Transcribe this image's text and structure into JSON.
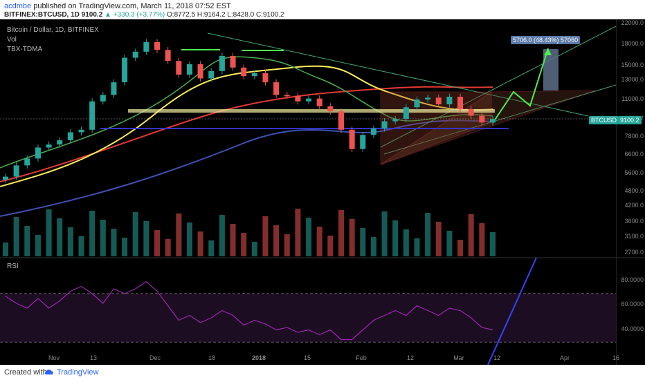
{
  "header": {
    "author": "acdmbe",
    "published": "published on TradingView.com, March 11, 2018 07:52 EST",
    "symbol_line": "BITFINEX:BTCUSD, 1D  9100.2",
    "change": "+330.3 (+3.77%)",
    "ohlc": "O:8772.5 H:9164.2 L:8428.0 C:9100.2"
  },
  "legend": {
    "line1": "Bitcoin / Dollar, 1D, BITFINEX",
    "line2": "Vol",
    "line3": "TBX-TDMA",
    "rsi": "RSI"
  },
  "badges": {
    "projection": "5706.0 (48.43%) 57060",
    "ticker": "BTCUSD",
    "price": "9100.2"
  },
  "footer": {
    "created": "Created with",
    "brand": "TradingView"
  },
  "colors": {
    "up": "#26a69a",
    "down": "#ef5350",
    "ma_green": "#4caf50",
    "ma_yellow": "#ffee58",
    "ma_red": "#e53935",
    "ma_blue": "#3f51b5",
    "rsi": "#9c27b0"
  },
  "chart_data": {
    "type": "line",
    "price_axis_ticks": [
      "22000.0",
      "18000.0",
      "15000.0",
      "13000.0",
      "11000.0",
      "9100.2",
      "7800.0",
      "6600.0",
      "5600.0",
      "4800.0",
      "4200.0",
      "3600.0",
      "3100.0",
      "2700.0"
    ],
    "rsi_axis_ticks": [
      "80.0000",
      "60.0000",
      "40.0000"
    ],
    "x_tick_labels": [
      "Nov",
      "13",
      "Dec",
      "18",
      "2018",
      "15",
      "Feb",
      "12",
      "Mar",
      "12",
      "Apr",
      "16"
    ],
    "price": {
      "series": [
        {
          "values": [
            5200,
            5800,
            6200,
            6900,
            7100,
            7400,
            8000,
            8200,
            10800,
            11500,
            13000,
            16500,
            17500,
            19200,
            17800,
            16000,
            14000,
            15500,
            13500,
            14500,
            16800,
            15000,
            13800,
            14200,
            13000,
            11500,
            11400,
            10800,
            11100,
            10300,
            9800,
            8200,
            6800,
            7800,
            8300,
            8900,
            9100,
            10200,
            11000,
            11200,
            10500,
            11300,
            10000,
            9400,
            8800,
            9100.2
          ]
        }
      ]
    },
    "rsi": {
      "series": [
        {
          "values": [
            68,
            62,
            58,
            66,
            58,
            64,
            72,
            76,
            70,
            62,
            74,
            70,
            74,
            80,
            72,
            60,
            48,
            52,
            46,
            50,
            56,
            52,
            44,
            48,
            45,
            40,
            42,
            38,
            40,
            36,
            40,
            32,
            32,
            40,
            48,
            52,
            56,
            52,
            60,
            56,
            52,
            58,
            56,
            50,
            42,
            40
          ]
        }
      ],
      "levels": [
        70,
        30
      ]
    }
  }
}
